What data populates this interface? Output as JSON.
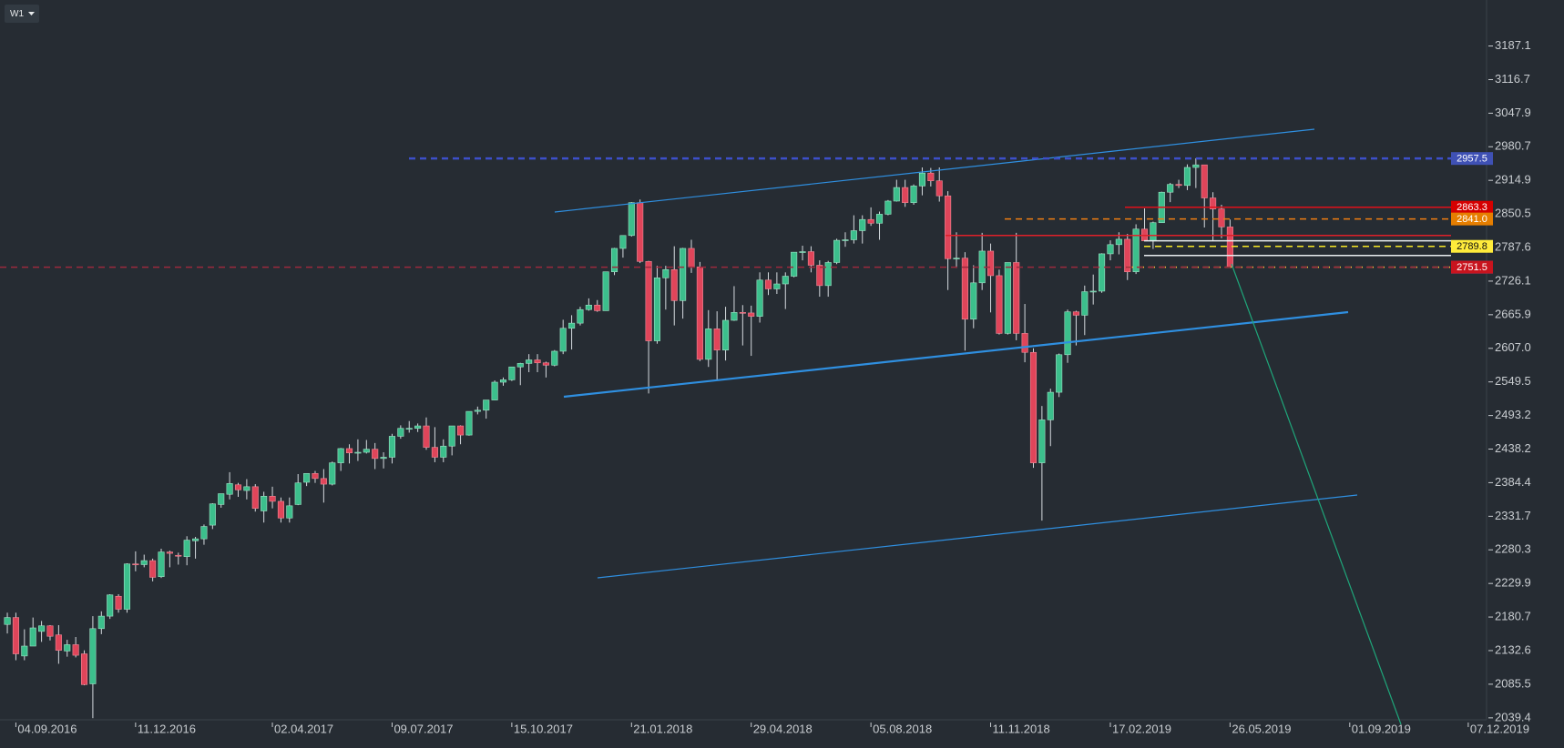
{
  "chart_data": {
    "type": "candlestick",
    "timeframe": "W1",
    "xlim": [
      "22.08.2016",
      "22.12.2019"
    ],
    "ylim": [
      2038,
      3286
    ],
    "log_scale": true,
    "up_color": "#3cbf8c",
    "down_color": "#e0455a",
    "wick_color": "#d5dadf",
    "xticks": [
      "04.09.2016",
      "11.12.2016",
      "02.04.2017",
      "09.07.2017",
      "15.10.2017",
      "21.01.2018",
      "29.04.2018",
      "05.08.2018",
      "11.11.2018",
      "17.02.2019",
      "26.05.2019",
      "01.09.2019",
      "07.12.2019"
    ],
    "yticks": [
      3187.1,
      3116.7,
      3047.9,
      2980.7,
      2914.9,
      2850.5,
      2787.6,
      2726.1,
      2665.9,
      {
        "value": 2607,
        "label": "2607.0"
      },
      2549.5,
      2493.2,
      2438.2,
      2384.4,
      2331.7,
      2280.3,
      2229.9,
      2180.7,
      2132.6,
      2085.5,
      2039.4
    ],
    "x": [
      "28.08.2016",
      "04.09.2016",
      "11.09.2016",
      "18.09.2016",
      "25.09.2016",
      "02.10.2016",
      "09.10.2016",
      "16.10.2016",
      "23.10.2016",
      "30.10.2016",
      "06.11.2016",
      "13.11.2016",
      "20.11.2016",
      "27.11.2016",
      "04.12.2016",
      "11.12.2016",
      "18.12.2016",
      "25.12.2016",
      "01.01.2017",
      "08.01.2017",
      "15.01.2017",
      "22.01.2017",
      "29.01.2017",
      "05.02.2017",
      "12.02.2017",
      "19.02.2017",
      "26.02.2017",
      "05.03.2017",
      "12.03.2017",
      "19.03.2017",
      "26.03.2017",
      "02.04.2017",
      "09.04.2017",
      "16.04.2017",
      "23.04.2017",
      "30.04.2017",
      "07.05.2017",
      "14.05.2017",
      "21.05.2017",
      "28.05.2017",
      "04.06.2017",
      "11.06.2017",
      "18.06.2017",
      "25.06.2017",
      "02.07.2017",
      "09.07.2017",
      "16.07.2017",
      "23.07.2017",
      "30.07.2017",
      "06.08.2017",
      "13.08.2017",
      "20.08.2017",
      "27.08.2017",
      "03.09.2017",
      "10.09.2017",
      "17.09.2017",
      "24.09.2017",
      "01.10.2017",
      "08.10.2017",
      "15.10.2017",
      "22.10.2017",
      "29.10.2017",
      "05.11.2017",
      "12.11.2017",
      "19.11.2017",
      "26.11.2017",
      "03.12.2017",
      "10.12.2017",
      "17.12.2017",
      "24.12.2017",
      "31.12.2017",
      "07.01.2018",
      "14.01.2018",
      "21.01.2018",
      "28.01.2018",
      "04.02.2018",
      "11.02.2018",
      "18.02.2018",
      "25.02.2018",
      "04.03.2018",
      "11.03.2018",
      "18.03.2018",
      "25.03.2018",
      "01.04.2018",
      "08.04.2018",
      "15.04.2018",
      "22.04.2018",
      "29.04.2018",
      "06.05.2018",
      "13.05.2018",
      "20.05.2018",
      "27.05.2018",
      "03.06.2018",
      "10.06.2018",
      "17.06.2018",
      "24.06.2018",
      "01.07.2018",
      "08.07.2018",
      "15.07.2018",
      "22.07.2018",
      "29.07.2018",
      "05.08.2018",
      "12.08.2018",
      "19.08.2018",
      "26.08.2018",
      "02.09.2018",
      "09.09.2018",
      "16.09.2018",
      "23.09.2018",
      "30.09.2018",
      "07.10.2018",
      "14.10.2018",
      "21.10.2018",
      "28.10.2018",
      "04.11.2018",
      "11.11.2018",
      "18.11.2018",
      "25.11.2018",
      "02.12.2018",
      "09.12.2018",
      "16.12.2018",
      "23.12.2018",
      "30.12.2018",
      "06.01.2019",
      "13.01.2019",
      "20.01.2019",
      "27.01.2019",
      "03.02.2019",
      "10.02.2019",
      "17.02.2019",
      "24.02.2019",
      "03.03.2019",
      "10.03.2019",
      "17.03.2019",
      "24.03.2019",
      "31.03.2019",
      "07.04.2019",
      "14.04.2019",
      "21.04.2019",
      "28.04.2019",
      "05.05.2019",
      "12.05.2019",
      "19.05.2019",
      "26.05.2019"
    ],
    "ohlc": [
      [
        2170,
        2187,
        2157,
        2180
      ],
      [
        2180,
        2187,
        2119,
        2128
      ],
      [
        2125,
        2163,
        2119,
        2139
      ],
      [
        2139,
        2180,
        2139,
        2165
      ],
      [
        2160,
        2175,
        2145,
        2168
      ],
      [
        2168,
        2169,
        2147,
        2153
      ],
      [
        2155,
        2169,
        2114,
        2133
      ],
      [
        2132,
        2148,
        2124,
        2141
      ],
      [
        2141,
        2152,
        2123,
        2126
      ],
      [
        2128,
        2133,
        2084,
        2085
      ],
      [
        2086,
        2182,
        2039,
        2164
      ],
      [
        2164,
        2189,
        2156,
        2182
      ],
      [
        2182,
        2214,
        2178,
        2213
      ],
      [
        2211,
        2214,
        2187,
        2192
      ],
      [
        2192,
        2260,
        2187,
        2259
      ],
      [
        2259,
        2278,
        2248,
        2258
      ],
      [
        2258,
        2273,
        2254,
        2264
      ],
      [
        2264,
        2267,
        2233,
        2239
      ],
      [
        2240,
        2282,
        2238,
        2277
      ],
      [
        2277,
        2279,
        2254,
        2275
      ],
      [
        2272,
        2276,
        2258,
        2271
      ],
      [
        2270,
        2301,
        2257,
        2295
      ],
      [
        2294,
        2300,
        2267,
        2297
      ],
      [
        2297,
        2319,
        2288,
        2316
      ],
      [
        2318,
        2352,
        2312,
        2351
      ],
      [
        2350,
        2367,
        2345,
        2367
      ],
      [
        2366,
        2401,
        2358,
        2383
      ],
      [
        2381,
        2384,
        2362,
        2373
      ],
      [
        2372,
        2390,
        2358,
        2378
      ],
      [
        2378,
        2382,
        2339,
        2344
      ],
      [
        2340,
        2370,
        2322,
        2363
      ],
      [
        2363,
        2378,
        2344,
        2355
      ],
      [
        2355,
        2361,
        2322,
        2329
      ],
      [
        2329,
        2361,
        2322,
        2348
      ],
      [
        2350,
        2398,
        2349,
        2384
      ],
      [
        2385,
        2399,
        2379,
        2399
      ],
      [
        2399,
        2403,
        2384,
        2391
      ],
      [
        2391,
        2406,
        2353,
        2382
      ],
      [
        2382,
        2418,
        2380,
        2416
      ],
      [
        2416,
        2440,
        2403,
        2439
      ],
      [
        2439,
        2446,
        2415,
        2432
      ],
      [
        2432,
        2454,
        2419,
        2433
      ],
      [
        2433,
        2453,
        2431,
        2438
      ],
      [
        2438,
        2448,
        2406,
        2423
      ],
      [
        2423,
        2433,
        2407,
        2425
      ],
      [
        2425,
        2463,
        2415,
        2459
      ],
      [
        2459,
        2477,
        2455,
        2472
      ],
      [
        2472,
        2484,
        2465,
        2472
      ],
      [
        2472,
        2480,
        2466,
        2476
      ],
      [
        2476,
        2490,
        2437,
        2441
      ],
      [
        2441,
        2474,
        2417,
        2425
      ],
      [
        2425,
        2454,
        2417,
        2443
      ],
      [
        2443,
        2476,
        2428,
        2476
      ],
      [
        2476,
        2477,
        2446,
        2461
      ],
      [
        2461,
        2500,
        2460,
        2500
      ],
      [
        2500,
        2508,
        2495,
        2502
      ],
      [
        2502,
        2519,
        2488,
        2519
      ],
      [
        2519,
        2552,
        2519,
        2549
      ],
      [
        2549,
        2557,
        2543,
        2553
      ],
      [
        2553,
        2575,
        2551,
        2575
      ],
      [
        2575,
        2582,
        2544,
        2581
      ],
      [
        2581,
        2597,
        2566,
        2587
      ],
      [
        2587,
        2597,
        2566,
        2582
      ],
      [
        2582,
        2584,
        2557,
        2578
      ],
      [
        2578,
        2604,
        2576,
        2602
      ],
      [
        2602,
        2657,
        2597,
        2642
      ],
      [
        2642,
        2665,
        2605,
        2651
      ],
      [
        2651,
        2680,
        2647,
        2675
      ],
      [
        2675,
        2695,
        2673,
        2683
      ],
      [
        2683,
        2692,
        2671,
        2673
      ],
      [
        2673,
        2743,
        2673,
        2743
      ],
      [
        2743,
        2787,
        2737,
        2786
      ],
      [
        2786,
        2810,
        2769,
        2810
      ],
      [
        2810,
        2873,
        2808,
        2872
      ],
      [
        2872,
        2878,
        2759,
        2762
      ],
      [
        2762,
        2763,
        2530,
        2620
      ],
      [
        2620,
        2754,
        2615,
        2732
      ],
      [
        2732,
        2754,
        2675,
        2747
      ],
      [
        2747,
        2790,
        2647,
        2691
      ],
      [
        2691,
        2787,
        2659,
        2786
      ],
      [
        2786,
        2802,
        2741,
        2752
      ],
      [
        2752,
        2761,
        2585,
        2588
      ],
      [
        2588,
        2674,
        2575,
        2641
      ],
      [
        2641,
        2672,
        2553,
        2604
      ],
      [
        2604,
        2680,
        2586,
        2656
      ],
      [
        2656,
        2717,
        2655,
        2670
      ],
      [
        2670,
        2683,
        2612,
        2669
      ],
      [
        2669,
        2682,
        2594,
        2663
      ],
      [
        2663,
        2742,
        2652,
        2728
      ],
      [
        2728,
        2742,
        2701,
        2712
      ],
      [
        2712,
        2742,
        2703,
        2721
      ],
      [
        2721,
        2742,
        2676,
        2735
      ],
      [
        2735,
        2779,
        2733,
        2779
      ],
      [
        2779,
        2791,
        2764,
        2780
      ],
      [
        2780,
        2790,
        2742,
        2755
      ],
      [
        2755,
        2764,
        2698,
        2718
      ],
      [
        2718,
        2763,
        2698,
        2760
      ],
      [
        2760,
        2804,
        2757,
        2801
      ],
      [
        2801,
        2816,
        2789,
        2802
      ],
      [
        2802,
        2848,
        2795,
        2819
      ],
      [
        2819,
        2848,
        2795,
        2840
      ],
      [
        2840,
        2863,
        2828,
        2833
      ],
      [
        2833,
        2855,
        2802,
        2850
      ],
      [
        2850,
        2877,
        2848,
        2875
      ],
      [
        2875,
        2916,
        2874,
        2901
      ],
      [
        2901,
        2916,
        2864,
        2872
      ],
      [
        2872,
        2907,
        2868,
        2904
      ],
      [
        2904,
        2940,
        2886,
        2929
      ],
      [
        2929,
        2939,
        2903,
        2914
      ],
      [
        2914,
        2940,
        2874,
        2885
      ],
      [
        2885,
        2894,
        2710,
        2767
      ],
      [
        2767,
        2816,
        2750,
        2768
      ],
      [
        2768,
        2779,
        2603,
        2658
      ],
      [
        2658,
        2755,
        2642,
        2723
      ],
      [
        2723,
        2815,
        2710,
        2781
      ],
      [
        2781,
        2795,
        2670,
        2736
      ],
      [
        2736,
        2747,
        2631,
        2633
      ],
      [
        2633,
        2760,
        2631,
        2760
      ],
      [
        2760,
        2815,
        2621,
        2633
      ],
      [
        2633,
        2685,
        2583,
        2600
      ],
      [
        2600,
        2607,
        2408,
        2416
      ],
      [
        2416,
        2509,
        2325,
        2486
      ],
      [
        2486,
        2538,
        2443,
        2532
      ],
      [
        2532,
        2598,
        2524,
        2596
      ],
      [
        2596,
        2675,
        2582,
        2671
      ],
      [
        2671,
        2673,
        2612,
        2665
      ],
      [
        2665,
        2718,
        2630,
        2707
      ],
      [
        2707,
        2738,
        2684,
        2708
      ],
      [
        2708,
        2777,
        2705,
        2776
      ],
      [
        2776,
        2801,
        2764,
        2793
      ],
      [
        2793,
        2816,
        2775,
        2803
      ],
      [
        2803,
        2813,
        2728,
        2743
      ],
      [
        2743,
        2831,
        2739,
        2822
      ],
      [
        2822,
        2861,
        2800,
        2800
      ],
      [
        2800,
        2836,
        2785,
        2834
      ],
      [
        2834,
        2893,
        2834,
        2892
      ],
      [
        2892,
        2910,
        2873,
        2907
      ],
      [
        2907,
        2916,
        2900,
        2905
      ],
      [
        2905,
        2946,
        2896,
        2940
      ],
      [
        2940,
        2958,
        2900,
        2945
      ],
      [
        2945,
        2945,
        2825,
        2881
      ],
      [
        2881,
        2892,
        2801,
        2860
      ],
      [
        2860,
        2868,
        2805,
        2826
      ],
      [
        2826,
        2840,
        2750,
        2751.5
      ]
    ],
    "levels": [
      {
        "value": 2957.5,
        "color": "#3d4fc9",
        "dash": true,
        "label_bg": "#3f51b5",
        "label_color": "#ffffff"
      },
      {
        "value": 2863.3,
        "color": "#e0101a",
        "dash": false,
        "label_bg": "#d50000",
        "label_color": "#ffffff"
      },
      {
        "value": 2841,
        "label": "2841.0",
        "color": "#ef7d12",
        "dash": true,
        "label_bg": "#e67e00",
        "label_color": "#ffffff"
      },
      {
        "value": 2789.8,
        "color": "#f5e625",
        "dash": true,
        "label_bg": "#ffeb3b",
        "label_color": "#111111"
      },
      {
        "value": 2751.4,
        "color": "#ffd23a",
        "dash": true,
        "label_bg": "#5c6bc0",
        "label_color": "#ffffff"
      },
      {
        "value": 2751.5,
        "color": "#9c2a3e",
        "dash": true,
        "label_bg": "#c8141e",
        "label_color": "#ffffff"
      }
    ],
    "lines": [
      {
        "value": 2810,
        "color": "#e0202a",
        "dash": false
      },
      {
        "value": 2800,
        "color": "#e8ecef",
        "dash": false
      },
      {
        "value": 2773,
        "color": "#e8ecef",
        "dash": false
      }
    ]
  }
}
